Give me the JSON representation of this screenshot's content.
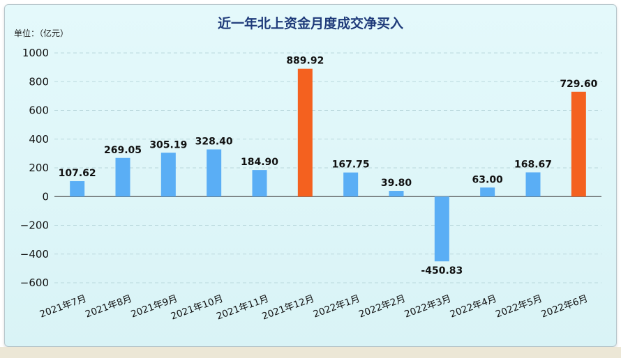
{
  "chart_data": {
    "type": "bar",
    "title": "近一年北上资金月度成交净买入",
    "unit_label": "单位：（亿元）",
    "categories": [
      "2021年7月",
      "2021年8月",
      "2021年9月",
      "2021年10月",
      "2021年11月",
      "2021年12月",
      "2022年1月",
      "2022年2月",
      "2022年3月",
      "2022年4月",
      "2022年5月",
      "2022年6月"
    ],
    "values": [
      107.62,
      269.05,
      305.19,
      328.4,
      184.9,
      889.92,
      167.75,
      39.8,
      -450.83,
      63.0,
      168.67,
      729.6
    ],
    "value_labels": [
      "107.62",
      "269.05",
      "305.19",
      "328.40",
      "184.90",
      "889.92",
      "167.75",
      "39.80",
      "-450.83",
      "63.00",
      "168.67",
      "729.60"
    ],
    "highlight": [
      false,
      false,
      false,
      false,
      false,
      true,
      false,
      false,
      false,
      false,
      false,
      true
    ],
    "yticks": [
      "1000",
      "800",
      "600",
      "400",
      "200",
      "0",
      "−200",
      "−400",
      "−600"
    ],
    "ytick_values": [
      1000,
      800,
      600,
      400,
      200,
      0,
      -200,
      -400,
      -600
    ],
    "ylim": [
      -600,
      1000
    ],
    "grid": true,
    "colors": {
      "bar": "#5aaef5",
      "highlight": "#f4611f",
      "title": "#1f3b7a"
    }
  }
}
